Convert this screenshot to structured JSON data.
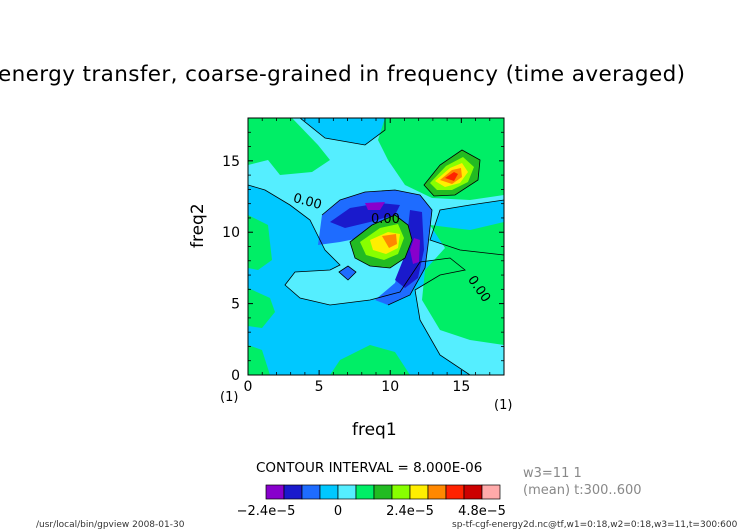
{
  "title": "energy transfer, coarse-grained in frequency (time averaged)",
  "chart_data": {
    "type": "heatmap",
    "xlabel": "freq1",
    "ylabel": "freq2",
    "xlim": [
      0,
      18
    ],
    "ylim": [
      0,
      18
    ],
    "xticks": [
      "0",
      "5",
      "10",
      "15"
    ],
    "yticks": [
      "0",
      "5",
      "10",
      "15"
    ],
    "axis_units": {
      "x": "(1)",
      "y": "(1)"
    },
    "contour_interval_text": "CONTOUR INTERVAL = 8.000E-06",
    "contour_labels": [
      "0.00",
      "0.00",
      "0.00"
    ],
    "features": [
      {
        "name": "positive peak",
        "x": 9.8,
        "y": 9.8,
        "value": 5.6e-05
      },
      {
        "name": "positive peak",
        "x": 14.0,
        "y": 14.0,
        "value": 4.8e-05
      },
      {
        "name": "negative trough",
        "x": 12.3,
        "y": 8.0,
        "value": -2.4e-05
      },
      {
        "name": "negative trough",
        "x": 7.5,
        "y": 11.5,
        "value": -2e-05
      }
    ],
    "colorbar": {
      "tick_labels": [
        "−2.4e−5",
        "0",
        "2.4e−5",
        "4.8e−5"
      ],
      "colors": [
        "#8800cc",
        "#1a1acc",
        "#1e6cff",
        "#00c8ff",
        "#55eeff",
        "#00ee66",
        "#22bb22",
        "#88ff00",
        "#ffee00",
        "#ff8800",
        "#ff2200",
        "#cc0000",
        "#ffaaaa"
      ]
    }
  },
  "annotations": {
    "line1": "w3=11  1",
    "line2": "(mean) t:300..600"
  },
  "footer": {
    "left": "/usr/local/bin/gpview   2008-01-30",
    "right": "sp-tf-cgf-energy2d.nc@tf,w1=0:18,w2=0:18,w3=11,t=300:600"
  }
}
